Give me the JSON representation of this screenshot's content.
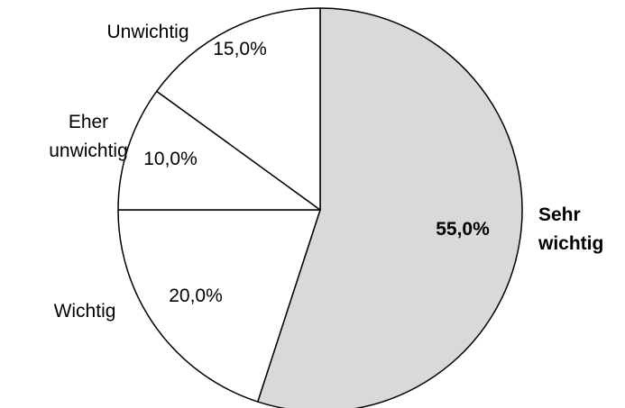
{
  "chart_data": {
    "type": "pie",
    "start_angle_deg": 0,
    "direction": "clockwise",
    "categories": [
      "Sehr wichtig",
      "Wichtig",
      "Eher unwichtig",
      "Unwichtig"
    ],
    "values": [
      55.0,
      20.0,
      10.0,
      15.0
    ],
    "value_labels": [
      "55,0%",
      "20,0%",
      "10,0%",
      "15,0%"
    ],
    "category_label_lines": [
      [
        "Sehr",
        "wichtig"
      ],
      [
        "Wichtig"
      ],
      [
        "Eher",
        "unwichtig"
      ],
      [
        "Unwichtig"
      ]
    ],
    "colors": [
      "#d9d9d9",
      "#ffffff",
      "#ffffff",
      "#ffffff"
    ],
    "bold": [
      true,
      false,
      false,
      false
    ],
    "stroke_color": "#000000",
    "legend": "none"
  }
}
